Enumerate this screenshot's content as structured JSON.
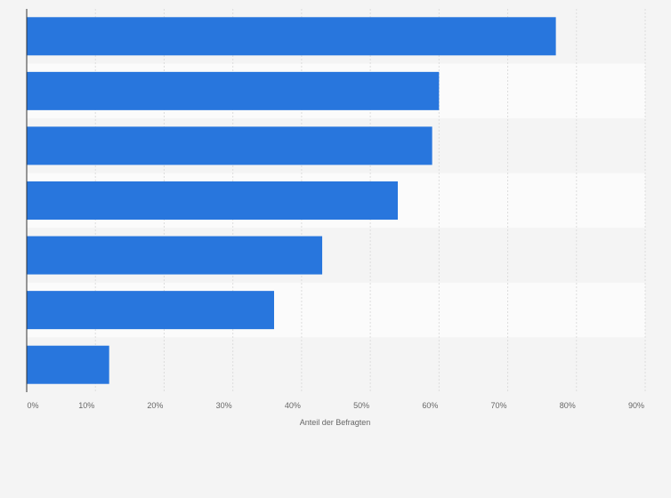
{
  "chart_data": {
    "type": "bar",
    "orientation": "horizontal",
    "categories": [
      "",
      "",
      "",
      "",
      "",
      "",
      ""
    ],
    "values": [
      77,
      60,
      59,
      54,
      43,
      36,
      12
    ],
    "xlabel": "Anteil der Befragten",
    "xlim": [
      0,
      90
    ],
    "x_ticks": [
      0,
      10,
      20,
      30,
      40,
      50,
      60,
      70,
      80,
      90
    ],
    "x_tick_labels": [
      "0%",
      "10%",
      "20%",
      "30%",
      "40%",
      "50%",
      "60%",
      "70%",
      "80%",
      "90%"
    ],
    "grid": true,
    "legend": "none"
  },
  "colors": {
    "bar": "#2876dd",
    "band_light": "#fbfbfb",
    "band_dark": "#f4f4f4",
    "grid": "#dddddd",
    "axis": "#333333"
  }
}
